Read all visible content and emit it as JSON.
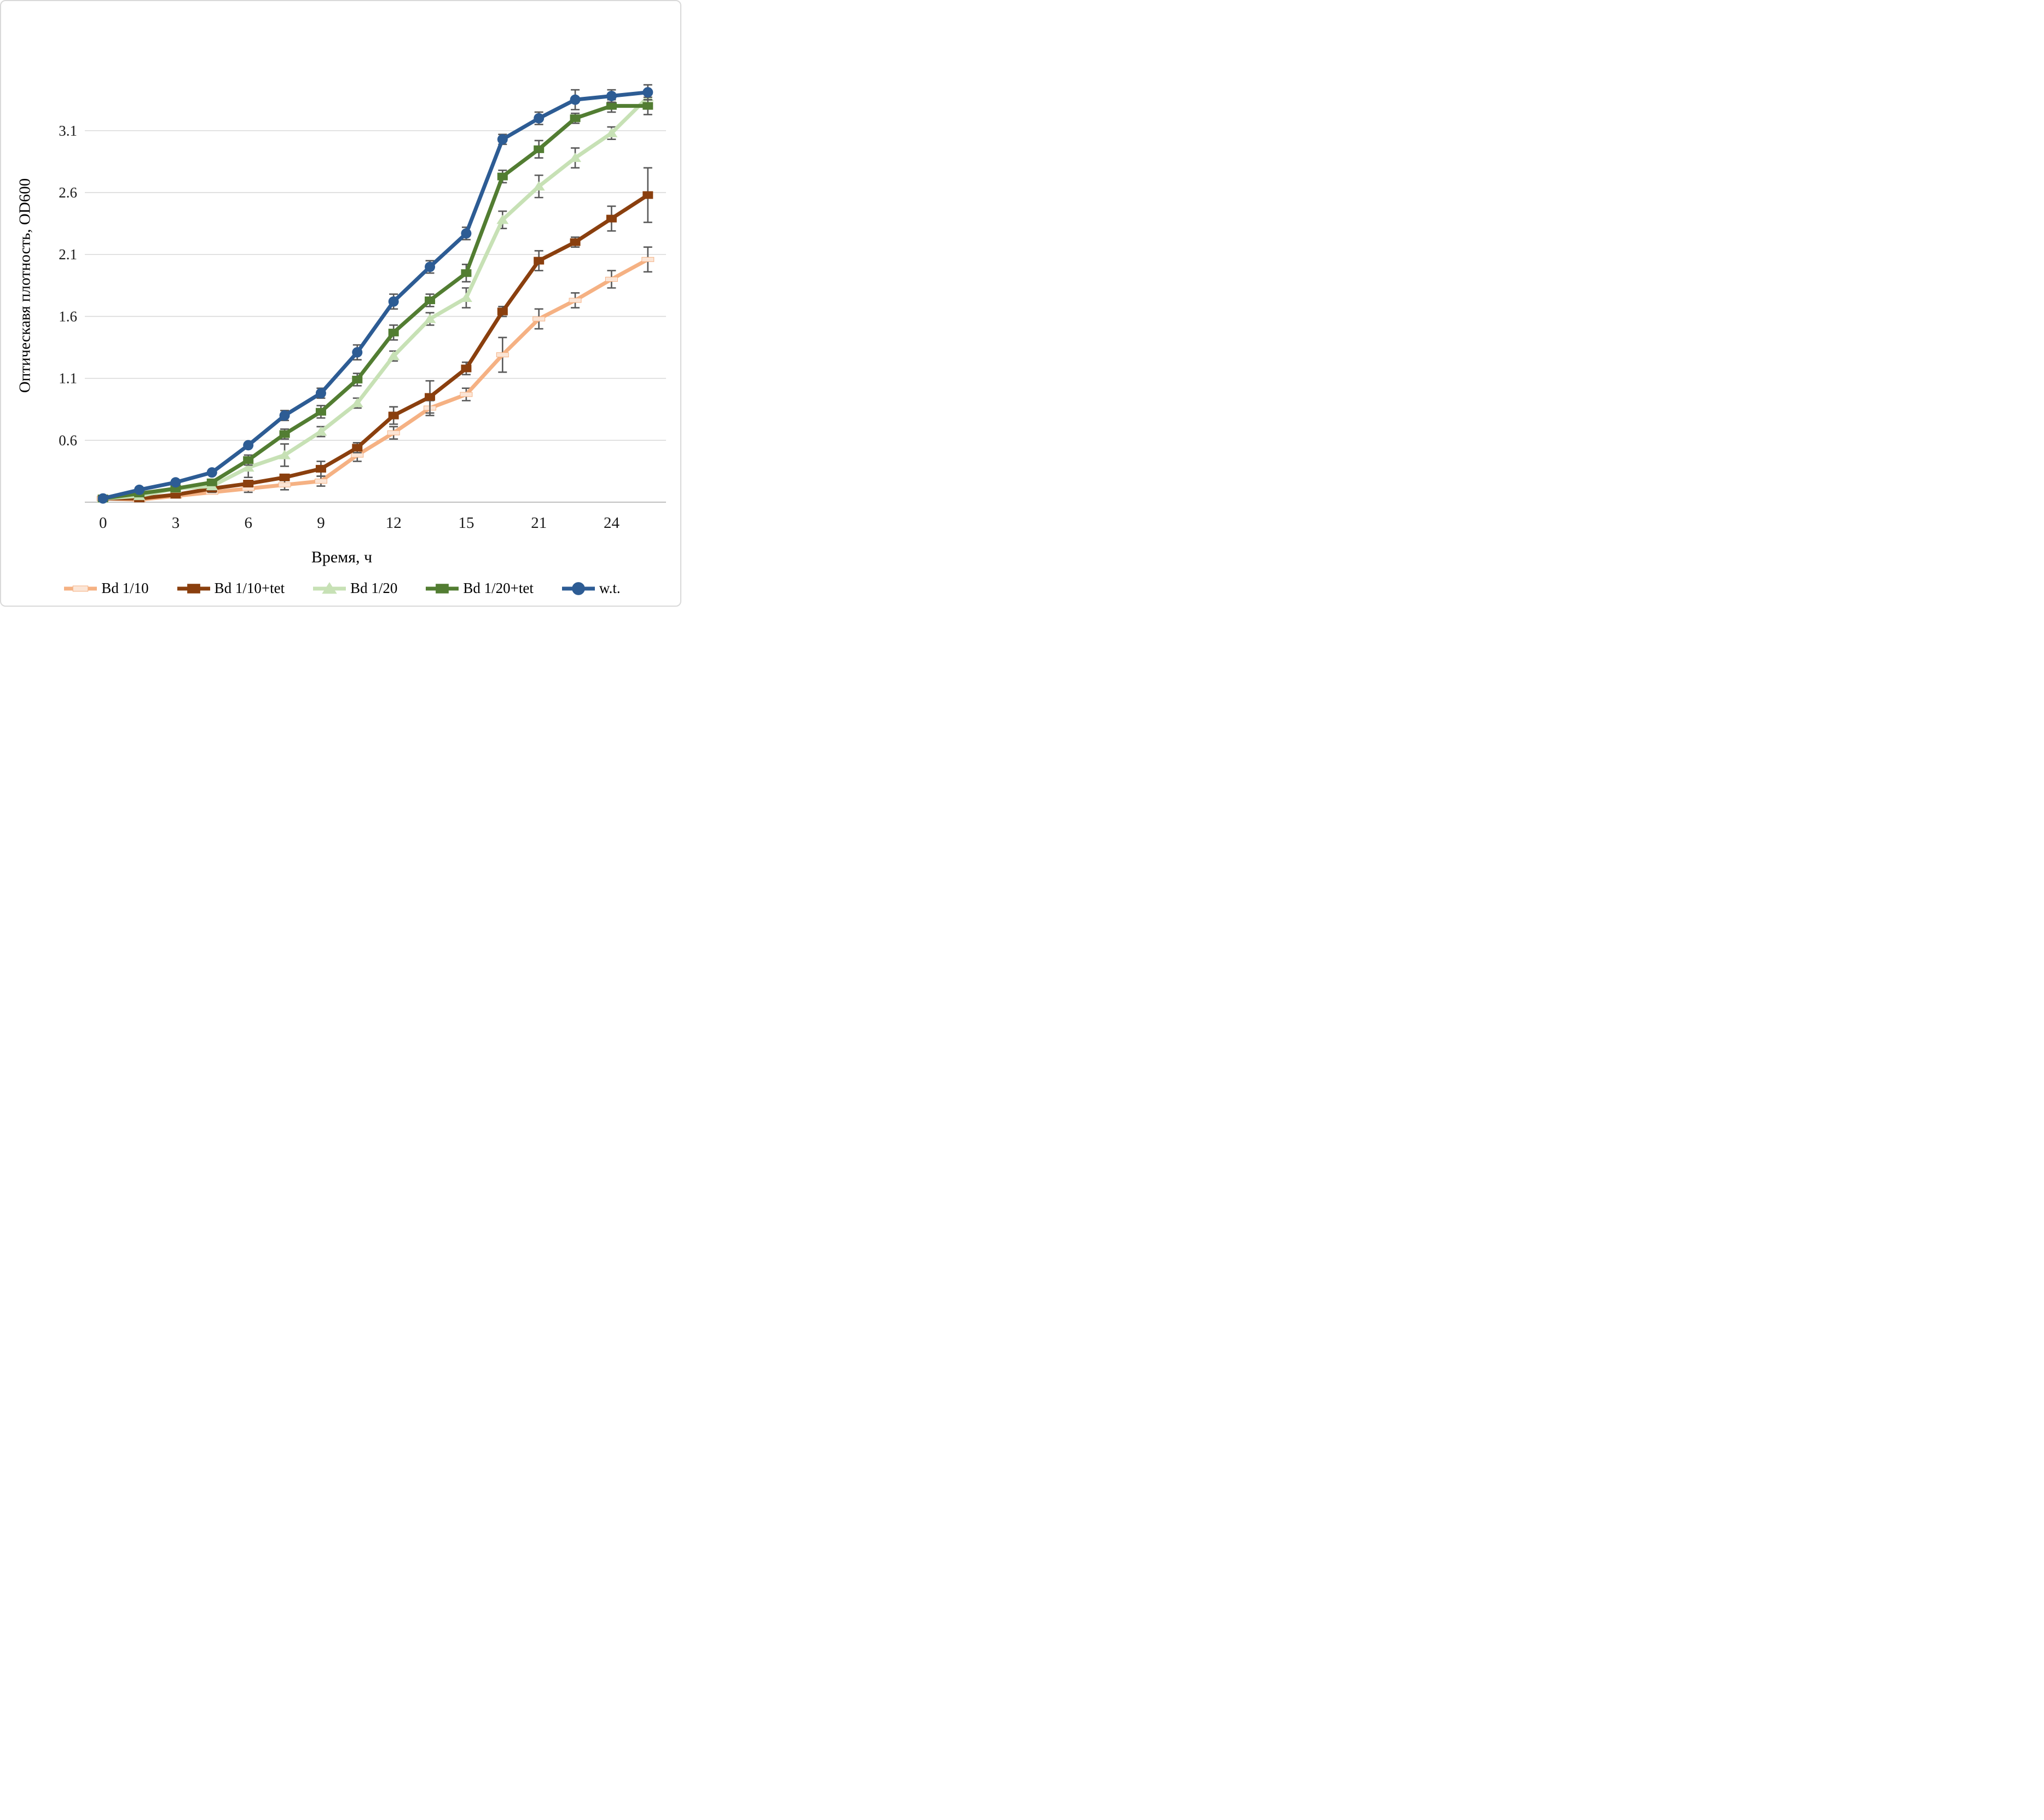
{
  "figure": {
    "y_axis_title": "Оптическавя плотность, OD600",
    "x_axis_title": "Время, ч"
  },
  "chart_data": {
    "type": "line",
    "title": "",
    "xlabel": "Время, ч",
    "ylabel": "Оптическавя плотность, OD600",
    "x_categories": [
      0,
      1.5,
      3,
      4.5,
      6,
      7.5,
      9,
      10.5,
      12,
      13.5,
      15,
      18,
      21,
      22.5,
      24,
      25.5
    ],
    "x_tick_indices": [
      0,
      2,
      4,
      6,
      8,
      10,
      12,
      14
    ],
    "x_tick_labels": [
      "0",
      "3",
      "6",
      "9",
      "12",
      "15",
      "21",
      "24"
    ],
    "y_ticks": [
      0.6,
      1.1,
      1.6,
      2.1,
      2.6,
      3.1
    ],
    "y_tick_labels": [
      "0.6",
      "1.1",
      "1.6",
      "2.1",
      "2.6",
      "3.1"
    ],
    "ylim": [
      0.1,
      3.55
    ],
    "axis_min_value": 0.1,
    "grid": true,
    "legend_position": "bottom",
    "gridline_color": "#d9d9d9",
    "axis_line_color": "#c0c0c0",
    "error_bar_color": "#595959",
    "series": [
      {
        "name": "Bd 1/10",
        "color": "#f5b183",
        "marker": "dash",
        "marker_fill": "#fbe5d6",
        "values": [
          0.13,
          0.12,
          0.15,
          0.18,
          0.21,
          0.24,
          0.27,
          0.48,
          0.66,
          0.86,
          0.97,
          1.29,
          1.58,
          1.73,
          1.9,
          2.06
        ],
        "errors": [
          0,
          0,
          0,
          0,
          0.03,
          0.04,
          0.04,
          0.05,
          0.05,
          0.06,
          0.05,
          0.14,
          0.08,
          0.06,
          0.07,
          0.1
        ]
      },
      {
        "name": "Bd 1/10+tet",
        "color": "#8a3f0e",
        "marker": "square",
        "marker_fill": "#8a3f0e",
        "values": [
          0.13,
          0.13,
          0.16,
          0.21,
          0.25,
          0.3,
          0.37,
          0.54,
          0.8,
          0.95,
          1.18,
          1.64,
          2.05,
          2.2,
          2.39,
          2.58
        ],
        "errors": [
          0,
          0,
          0,
          0.03,
          0,
          0,
          0.06,
          0.04,
          0.07,
          0.13,
          0.05,
          0.04,
          0.08,
          0.04,
          0.1,
          0.22
        ]
      },
      {
        "name": "Bd 1/20",
        "color": "#c7e1b5",
        "marker": "triangle",
        "marker_fill": "#c7e1b5",
        "values": [
          0.13,
          0.15,
          0.21,
          0.23,
          0.38,
          0.48,
          0.67,
          0.9,
          1.28,
          1.58,
          1.75,
          2.38,
          2.65,
          2.88,
          3.08,
          3.37
        ],
        "errors": [
          0,
          0,
          0,
          0.03,
          0.08,
          0.09,
          0.04,
          0.04,
          0.04,
          0.05,
          0.08,
          0.07,
          0.09,
          0.08,
          0.05,
          0.05
        ]
      },
      {
        "name": "Bd 1/20+tet",
        "color": "#527d32",
        "marker": "square",
        "marker_fill": "#527d32",
        "values": [
          0.13,
          0.17,
          0.21,
          0.26,
          0.44,
          0.65,
          0.83,
          1.09,
          1.47,
          1.73,
          1.95,
          2.73,
          2.95,
          3.2,
          3.3,
          3.3
        ],
        "errors": [
          0,
          0,
          0,
          0,
          0.04,
          0.04,
          0.05,
          0.05,
          0.06,
          0.05,
          0.07,
          0.05,
          0.07,
          0.04,
          0.05,
          0.07
        ]
      },
      {
        "name": "w.t.",
        "color": "#2d5c94",
        "marker": "circle",
        "marker_fill": "#2d5c94",
        "values": [
          0.13,
          0.2,
          0.26,
          0.34,
          0.56,
          0.8,
          0.98,
          1.31,
          1.72,
          2.0,
          2.27,
          3.03,
          3.2,
          3.35,
          3.38,
          3.41
        ],
        "errors": [
          0,
          0,
          0,
          0,
          0,
          0.04,
          0.04,
          0.06,
          0.06,
          0.05,
          0.05,
          0.04,
          0.05,
          0.08,
          0.05,
          0.06
        ]
      }
    ]
  }
}
